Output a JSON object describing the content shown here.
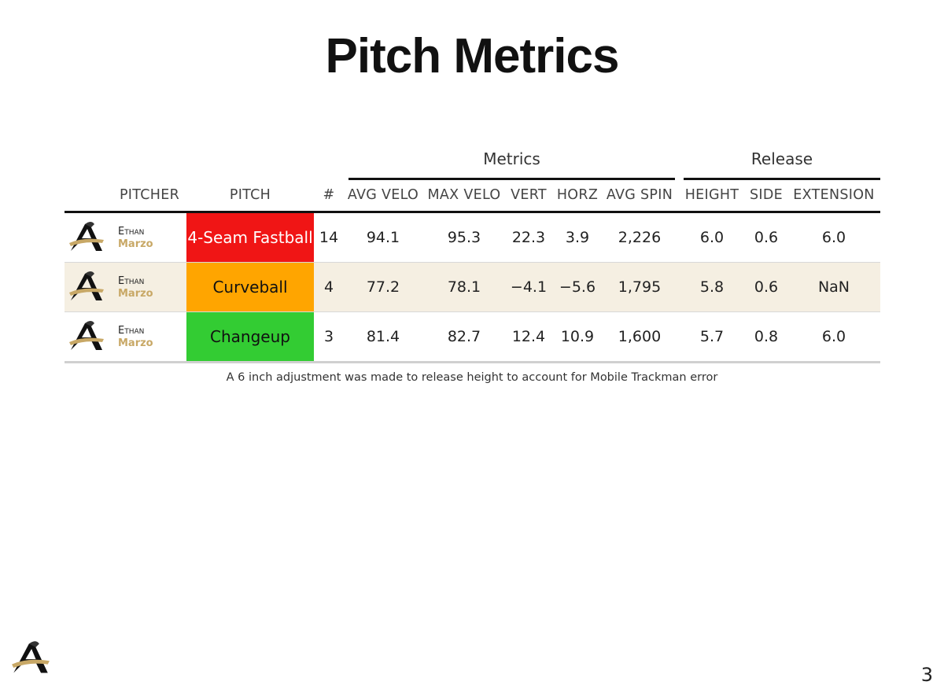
{
  "title": "Pitch Metrics",
  "groups": {
    "metrics": "Metrics",
    "release": "Release"
  },
  "columns": {
    "pitcher": "PITCHER",
    "pitch": "PITCH",
    "count": "#",
    "avg_velo": "AVG VELO",
    "max_velo": "MAX VELO",
    "vert": "VERT",
    "horz": "HORZ",
    "avg_spin": "AVG SPIN",
    "height": "HEIGHT",
    "side": "SIDE",
    "extension": "EXTENSION"
  },
  "rows": [
    {
      "first": "Ethan",
      "last": "Marzo",
      "pitch": "4-Seam Fastball",
      "pitch_color": "#f01515",
      "pitch_text_color": "#ffffff",
      "count": "14",
      "avg_velo": "94.1",
      "max_velo": "95.3",
      "vert": "22.3",
      "horz": "3.9",
      "avg_spin": "2,226",
      "height": "6.0",
      "side": "0.6",
      "extension": "6.0"
    },
    {
      "first": "Ethan",
      "last": "Marzo",
      "pitch": "Curveball",
      "pitch_color": "#ffa500",
      "pitch_text_color": "#111111",
      "count": "4",
      "avg_velo": "77.2",
      "max_velo": "78.1",
      "vert": "−4.1",
      "horz": "−5.6",
      "avg_spin": "1,795",
      "height": "5.8",
      "side": "0.6",
      "extension": "NaN"
    },
    {
      "first": "Ethan",
      "last": "Marzo",
      "pitch": "Changeup",
      "pitch_color": "#33cc33",
      "pitch_text_color": "#111111",
      "count": "3",
      "avg_velo": "81.4",
      "max_velo": "82.7",
      "vert": "12.4",
      "horz": "10.9",
      "avg_spin": "1,600",
      "height": "5.7",
      "side": "0.8",
      "extension": "6.0"
    }
  ],
  "footnote": "A 6 inch adjustment was made to release height to account for Mobile Trackman error",
  "page_number": "3",
  "icons": {
    "team_logo": "knight-logo-icon"
  },
  "colors": {
    "accent_gold": "#c8a866",
    "alt_row": "#f5efe2"
  }
}
